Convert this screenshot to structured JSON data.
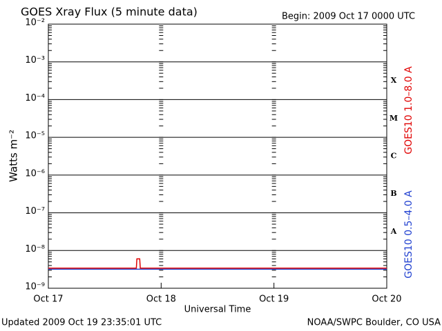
{
  "chart_data": {
    "type": "line",
    "title": "GOES Xray Flux (5 minute data)",
    "subtitle": "Begin:  2009 Oct 17 0000 UTC",
    "y_label": "Watts m⁻²",
    "x_label": "Universal Time",
    "footer_left": "Updated 2009 Oct 19 23:35:01 UTC",
    "footer_right": "NOAA/SWPC Boulder, CO USA",
    "log_y": true,
    "grid": true,
    "xlim": [
      0,
      3
    ],
    "xticks": [
      {
        "value": 0,
        "label": "Oct 17"
      },
      {
        "value": 1,
        "label": "Oct 18"
      },
      {
        "value": 2,
        "label": "Oct 19"
      },
      {
        "value": 3,
        "label": "Oct 20"
      }
    ],
    "ylim": [
      1e-09,
      0.01
    ],
    "yticks": [
      {
        "value": 1e-09,
        "label": "10⁻⁹"
      },
      {
        "value": 1e-08,
        "label": "10⁻⁸"
      },
      {
        "value": 1e-07,
        "label": "10⁻⁷"
      },
      {
        "value": 1e-06,
        "label": "10⁻⁶"
      },
      {
        "value": 1e-05,
        "label": "10⁻⁵"
      },
      {
        "value": 0.0001,
        "label": "10⁻⁴"
      },
      {
        "value": 0.001,
        "label": "10⁻³"
      },
      {
        "value": 0.01,
        "label": "10⁻²"
      }
    ],
    "flare_classes": [
      {
        "label": "X",
        "value": 0.0001
      },
      {
        "label": "M",
        "value": 1e-05
      },
      {
        "label": "C",
        "value": 1e-06
      },
      {
        "label": "B",
        "value": 1e-07
      },
      {
        "label": "A",
        "value": 1e-08
      }
    ],
    "series": [
      {
        "name": "GOES10 1.0–8.0 A",
        "color": "#e00000",
        "x": [
          0,
          0.78,
          0.785,
          0.81,
          0.815,
          3
        ],
        "values": [
          3.4e-09,
          3.4e-09,
          6e-09,
          6e-09,
          3.4e-09,
          3.4e-09
        ]
      },
      {
        "name": "GOES10 0.5–4.0 A",
        "color": "#2040d0",
        "x": [
          0,
          3
        ],
        "values": [
          3.2e-09,
          3.2e-09
        ]
      }
    ]
  }
}
